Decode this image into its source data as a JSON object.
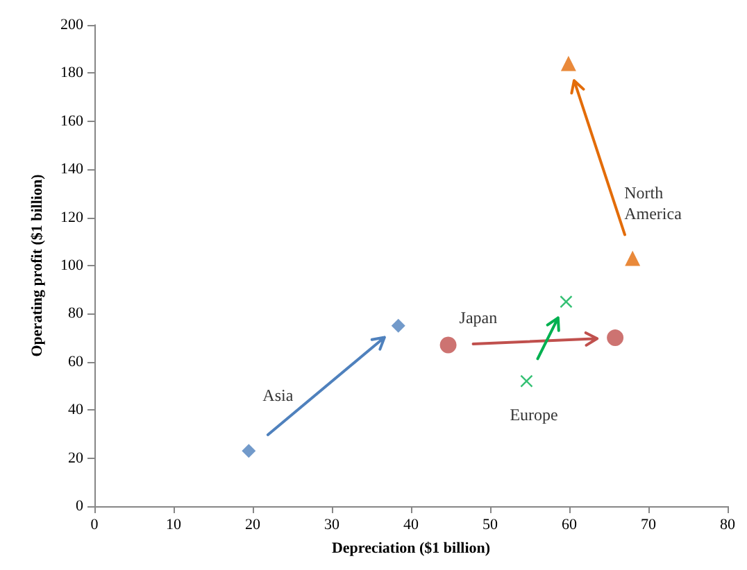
{
  "chart_data": {
    "type": "scatter",
    "xlabel": "Depreciation ($1 billion)",
    "ylabel": "Operating profit ($1 billion)",
    "xlim": [
      0,
      80
    ],
    "xticks": [
      0,
      10,
      20,
      30,
      40,
      50,
      60,
      70,
      80
    ],
    "ylim": [
      0,
      200
    ],
    "yticks": [
      0,
      20,
      40,
      60,
      80,
      100,
      120,
      140,
      160,
      180,
      200
    ],
    "grid": false,
    "legend": false,
    "series": [
      {
        "name": "Asia",
        "color": "#4f81bd",
        "marker": "diamond",
        "x": [
          19.5,
          38.4
        ],
        "values": [
          23,
          75
        ]
      },
      {
        "name": "Japan",
        "color": "#c0504d",
        "marker": "circle",
        "x": [
          44.7,
          65.8
        ],
        "values": [
          67,
          70
        ]
      },
      {
        "name": "Europe",
        "color": "#00b050",
        "marker": "cross",
        "x": [
          54.6,
          59.6
        ],
        "values": [
          52,
          85
        ]
      },
      {
        "name": "North America",
        "color": "#e36c09",
        "marker": "triangle",
        "x": [
          68,
          59.9
        ],
        "values": [
          103,
          184
        ]
      }
    ]
  }
}
